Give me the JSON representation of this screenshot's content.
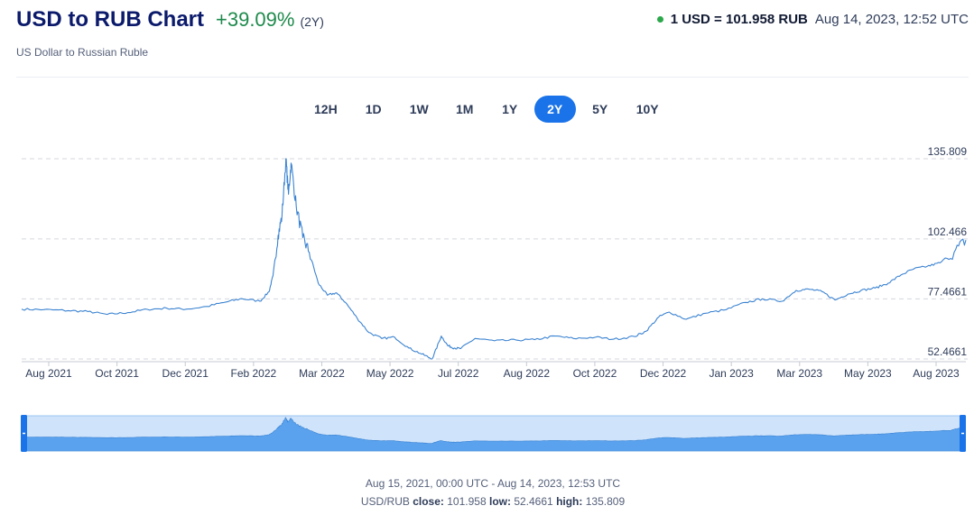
{
  "header": {
    "title": "USD to RUB Chart",
    "change": "+39.09%",
    "period": "(2Y)",
    "subtitle": "US Dollar to Russian Ruble",
    "rate": "1 USD = 101.958 RUB",
    "timestamp": "Aug 14, 2023, 12:52 UTC"
  },
  "tabs": [
    "12H",
    "1D",
    "1W",
    "1M",
    "1Y",
    "2Y",
    "5Y",
    "10Y"
  ],
  "active_tab": "2Y",
  "colors": {
    "line": "#3b83d1",
    "navigator_fill": "#5aa2ee",
    "navigator_bg": "#cfe3fb",
    "active_tab": "#1a73e8",
    "positive": "#1e8a4c"
  },
  "footer": {
    "range": "Aug 15, 2021, 00:00 UTC - Aug 14, 2023, 12:53 UTC",
    "pair": "USD/RUB",
    "close_label": "close:",
    "close": "101.958",
    "low_label": "low:",
    "low": "52.4661",
    "high_label": "high:",
    "high": "135.809"
  },
  "chart_data": {
    "type": "line",
    "title": "USD to RUB Chart",
    "xlabel": "",
    "ylabel": "",
    "x_ticks": [
      "Aug 2021",
      "Oct 2021",
      "Dec 2021",
      "Feb 2022",
      "Mar 2022",
      "May 2022",
      "Jul 2022",
      "Aug 2022",
      "Oct 2022",
      "Dec 2022",
      "Jan 2023",
      "Mar 2023",
      "May 2023",
      "Aug 2023"
    ],
    "y_ticks": [
      135.809,
      102.466,
      77.4661,
      52.4661
    ],
    "ylim": [
      52.4661,
      135.809
    ],
    "xlim": [
      "2021-08-15",
      "2023-08-14"
    ],
    "grid": "horizontal dashed",
    "legend": "none",
    "series": [
      {
        "x": [
          "2021-08-15",
          "2021-09-01",
          "2021-09-20",
          "2021-10-05",
          "2021-10-20",
          "2021-11-05",
          "2021-11-20",
          "2021-12-05",
          "2021-12-20",
          "2022-01-05",
          "2022-01-20",
          "2022-02-01",
          "2022-02-15",
          "2022-02-22",
          "2022-02-25",
          "2022-03-01",
          "2022-03-04",
          "2022-03-07",
          "2022-03-09",
          "2022-03-11",
          "2022-03-15",
          "2022-03-20",
          "2022-03-25",
          "2022-04-01",
          "2022-04-08",
          "2022-04-15",
          "2022-04-22",
          "2022-05-01",
          "2022-05-10",
          "2022-05-20",
          "2022-05-30",
          "2022-06-10",
          "2022-06-20",
          "2022-06-28",
          "2022-07-05",
          "2022-07-10",
          "2022-07-15",
          "2022-07-20",
          "2022-07-31",
          "2022-08-15",
          "2022-09-01",
          "2022-09-15",
          "2022-10-01",
          "2022-10-15",
          "2022-11-01",
          "2022-11-15",
          "2022-12-01",
          "2022-12-10",
          "2022-12-20",
          "2022-12-28",
          "2023-01-10",
          "2023-01-25",
          "2023-02-10",
          "2023-02-25",
          "2023-03-10",
          "2023-03-25",
          "2023-04-05",
          "2023-04-15",
          "2023-04-25",
          "2023-05-05",
          "2023-05-15",
          "2023-05-25",
          "2023-06-05",
          "2023-06-15",
          "2023-06-25",
          "2023-07-05",
          "2023-07-15",
          "2023-07-25",
          "2023-08-05",
          "2023-08-14"
        ],
        "values": [
          73.2,
          73.0,
          72.6,
          72.2,
          71.0,
          71.8,
          73.1,
          73.6,
          73.2,
          74.3,
          76.2,
          77.6,
          76.5,
          80.5,
          87.0,
          104.0,
          112.0,
          135.8,
          121.0,
          134.0,
          116.0,
          103.0,
          97.0,
          84.0,
          79.0,
          80.0,
          76.0,
          69.5,
          63.5,
          61.0,
          61.5,
          57.0,
          54.5,
          52.5,
          62.0,
          58.0,
          57.0,
          56.8,
          61.0,
          60.0,
          60.3,
          60.5,
          62.0,
          61.0,
          61.5,
          60.7,
          61.8,
          64.0,
          70.0,
          72.0,
          69.0,
          71.5,
          73.0,
          76.0,
          77.5,
          76.5,
          81.0,
          81.5,
          80.5,
          77.0,
          79.5,
          81.0,
          82.0,
          84.0,
          87.5,
          90.0,
          91.0,
          92.5,
          97.0,
          101.958
        ]
      }
    ]
  }
}
